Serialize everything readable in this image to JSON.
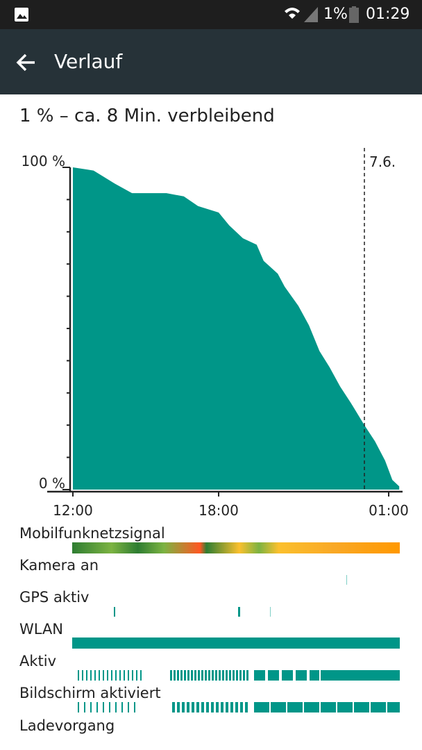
{
  "status_bar": {
    "battery": "1%",
    "time": "01:29"
  },
  "header": {
    "title": "Verlauf"
  },
  "summary": "1 % – ca. 8 Min. verbleibend",
  "chart_data": {
    "type": "area",
    "color": "#009688",
    "x": [
      "12:00",
      "12:51",
      "13:43",
      "14:26",
      "15:51",
      "16:34",
      "17:09",
      "18:00",
      "18:26",
      "19:00",
      "19:34",
      "19:51",
      "20:26",
      "20:43",
      "21:17",
      "21:43",
      "22:09",
      "22:34",
      "23:00",
      "23:26",
      "00:00",
      "00:26",
      "00:51",
      "01:09",
      "01:26"
    ],
    "values": [
      100,
      99,
      95,
      92,
      92,
      91,
      88,
      86,
      82,
      78,
      76,
      71,
      67,
      63,
      57,
      51,
      43,
      38,
      32,
      27,
      20,
      15,
      9,
      3,
      1
    ],
    "xlim": [
      "12:00",
      "01:00"
    ],
    "xticks": [
      "12:00",
      "18:00",
      "01:00"
    ],
    "ylim": [
      0,
      100
    ],
    "yticks": [
      {
        "value": 0,
        "label": "0 %"
      },
      {
        "value": 100,
        "label": "100 %"
      }
    ],
    "day_marker": "7.6."
  },
  "rows": [
    "Mobilfunknetzsignal",
    "Kamera an",
    "GPS aktiv",
    "WLAN",
    "Aktiv",
    "Bildschirm aktiviert",
    "Ladevorgang"
  ]
}
